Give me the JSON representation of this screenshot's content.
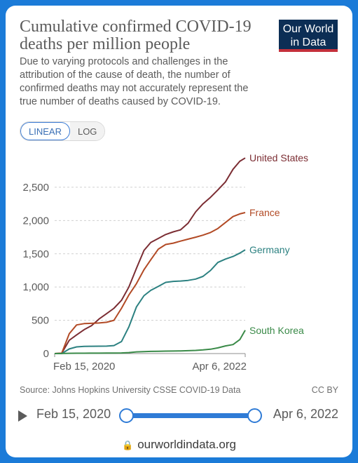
{
  "header": {
    "title": "Cumulative confirmed COVID-19 deaths per million people",
    "subtitle": "Due to varying protocols and challenges in the attribution of the cause of death, the number of confirmed deaths may not accurately represent the true number of deaths caused by COVID-19.",
    "logo_line1": "Our World",
    "logo_line2": "in Data",
    "logo_bg": "#0c2e55",
    "logo_accent": "#c4303b"
  },
  "toggle": {
    "linear_label": "LINEAR",
    "log_label": "LOG",
    "active": "LINEAR"
  },
  "chart_data": {
    "type": "line",
    "title": "Cumulative confirmed COVID-19 deaths per million people",
    "xlabel": "",
    "ylabel": "",
    "ylim": [
      0,
      2900
    ],
    "yticks": [
      0,
      500,
      1000,
      1500,
      2000,
      2500
    ],
    "ytick_labels": [
      "0",
      "500",
      "1,000",
      "1,500",
      "2,000",
      "2,500"
    ],
    "xtick_labels": [
      "Feb 15, 2020",
      "Apr 6, 2022"
    ],
    "x_dates": [
      "2020-02-15",
      "2020-03-15",
      "2020-04-15",
      "2020-05-15",
      "2020-06-15",
      "2020-07-15",
      "2020-08-15",
      "2020-09-15",
      "2020-10-15",
      "2020-11-15",
      "2020-12-15",
      "2021-01-15",
      "2021-02-15",
      "2021-03-15",
      "2021-04-15",
      "2021-05-15",
      "2021-06-15",
      "2021-07-15",
      "2021-08-15",
      "2021-09-15",
      "2021-10-15",
      "2021-11-15",
      "2021-12-15",
      "2022-01-15",
      "2022-02-15",
      "2022-03-15",
      "2022-04-06"
    ],
    "grid": true,
    "legend": "inline-right",
    "series": [
      {
        "name": "United States",
        "color": "#7b2d33",
        "values": [
          0,
          5,
          200,
          280,
          360,
          420,
          520,
          600,
          680,
          800,
          1000,
          1280,
          1550,
          1670,
          1730,
          1790,
          1830,
          1860,
          1960,
          2130,
          2250,
          2350,
          2460,
          2580,
          2770,
          2890,
          2940
        ]
      },
      {
        "name": "France",
        "color": "#b24a25",
        "values": [
          0,
          5,
          300,
          430,
          450,
          455,
          460,
          470,
          500,
          680,
          880,
          1050,
          1260,
          1410,
          1570,
          1640,
          1660,
          1690,
          1720,
          1750,
          1780,
          1820,
          1880,
          1970,
          2060,
          2100,
          2120
        ]
      },
      {
        "name": "Germany",
        "color": "#2c8181",
        "values": [
          0,
          0,
          70,
          100,
          108,
          110,
          111,
          112,
          120,
          180,
          400,
          700,
          870,
          950,
          1010,
          1070,
          1085,
          1090,
          1100,
          1120,
          1160,
          1250,
          1370,
          1420,
          1460,
          1510,
          1560
        ]
      },
      {
        "name": "South Korea",
        "color": "#3a8a48",
        "values": [
          0,
          1,
          4,
          5,
          5,
          6,
          6,
          7,
          8,
          10,
          15,
          25,
          30,
          33,
          35,
          37,
          38,
          40,
          43,
          47,
          55,
          65,
          85,
          115,
          135,
          210,
          350
        ]
      }
    ]
  },
  "footer": {
    "source": "Source: Johns Hopkins University CSSE COVID-19 Data",
    "license": "CC BY"
  },
  "timeline": {
    "start_label": "Feb 15, 2020",
    "end_label": "Apr 6, 2022"
  },
  "browser": {
    "address": "ourworldindata.org"
  }
}
